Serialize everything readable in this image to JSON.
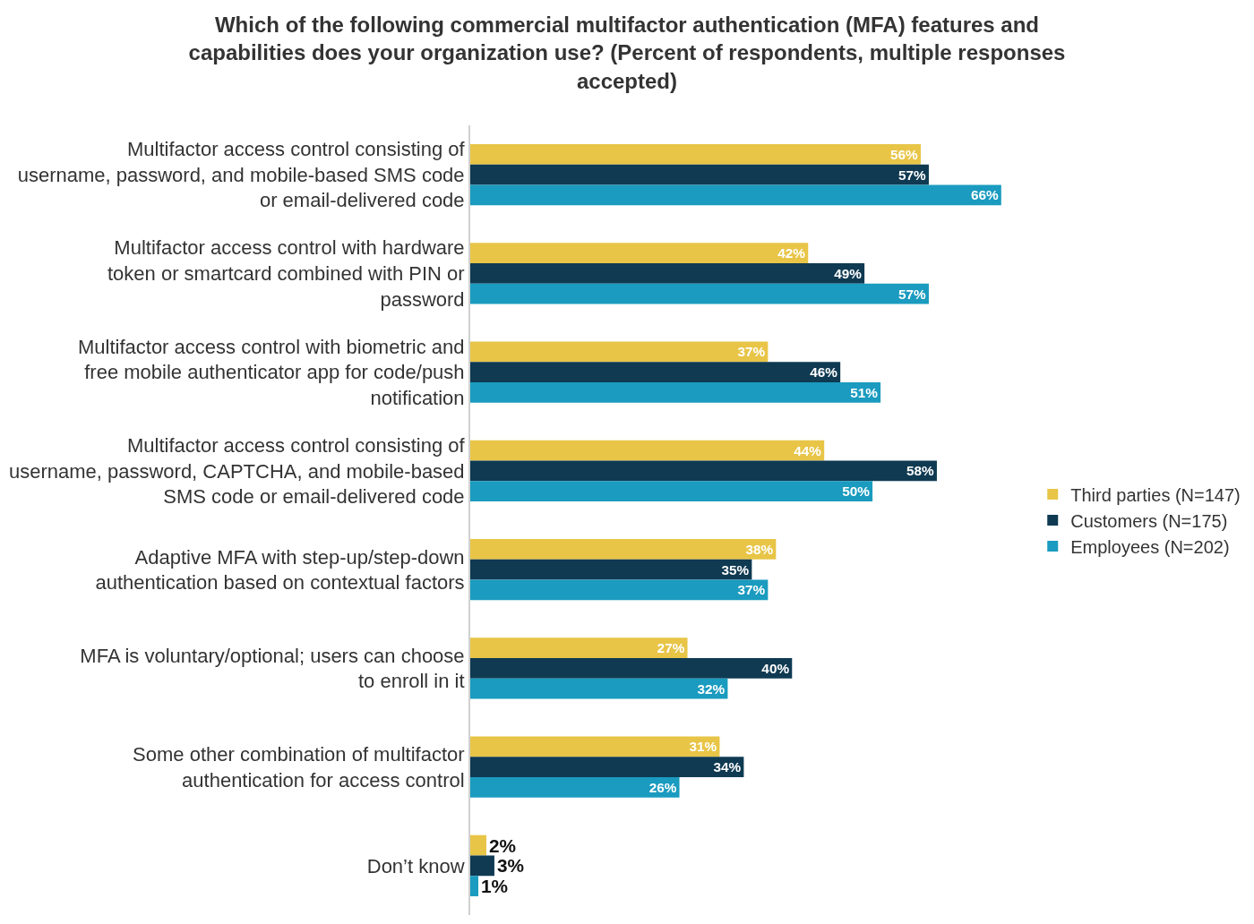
{
  "chart_data": {
    "type": "bar",
    "orientation": "horizontal",
    "title": "Which of the following commercial multifactor authentication (MFA) features and capabilities does your organization use? (Percent of respondents, multiple responses accepted)",
    "categories": [
      "Multifactor access control consisting of username, password, and mobile-based SMS code or email-delivered code",
      "Multifactor access control with hardware token or smartcard combined with PIN or password",
      "Multifactor access control with biometric and free mobile authenticator app for code/push notification",
      "Multifactor access control consisting of username, password, CAPTCHA, and mobile-based SMS code or email-delivered code",
      "Adaptive MFA with step-up/step-down authentication based on contextual factors",
      "MFA is voluntary/optional; users can choose to enroll in it",
      "Some other combination of multifactor authentication for access control",
      "Don’t know"
    ],
    "series": [
      {
        "name": "Third parties (N=147)",
        "color": "#e8c547",
        "values": [
          56,
          42,
          37,
          44,
          38,
          27,
          31,
          2
        ],
        "value_labels": [
          "56%",
          "42%",
          "37%",
          "44%",
          "38%",
          "27%",
          "31%",
          "2%"
        ]
      },
      {
        "name": "Customers (N=175)",
        "color": "#0f3a52",
        "values": [
          57,
          49,
          46,
          58,
          35,
          40,
          34,
          3
        ],
        "value_labels": [
          "57%",
          "49%",
          "46%",
          "58%",
          "35%",
          "40%",
          "34%",
          "3%"
        ]
      },
      {
        "name": "Employees (N=202)",
        "color": "#1a9bbf",
        "values": [
          66,
          57,
          51,
          50,
          37,
          32,
          26,
          1
        ],
        "value_labels": [
          "66%",
          "57%",
          "51%",
          "50%",
          "37%",
          "32%",
          "26%",
          "1%"
        ]
      }
    ],
    "legend": "right"
  }
}
